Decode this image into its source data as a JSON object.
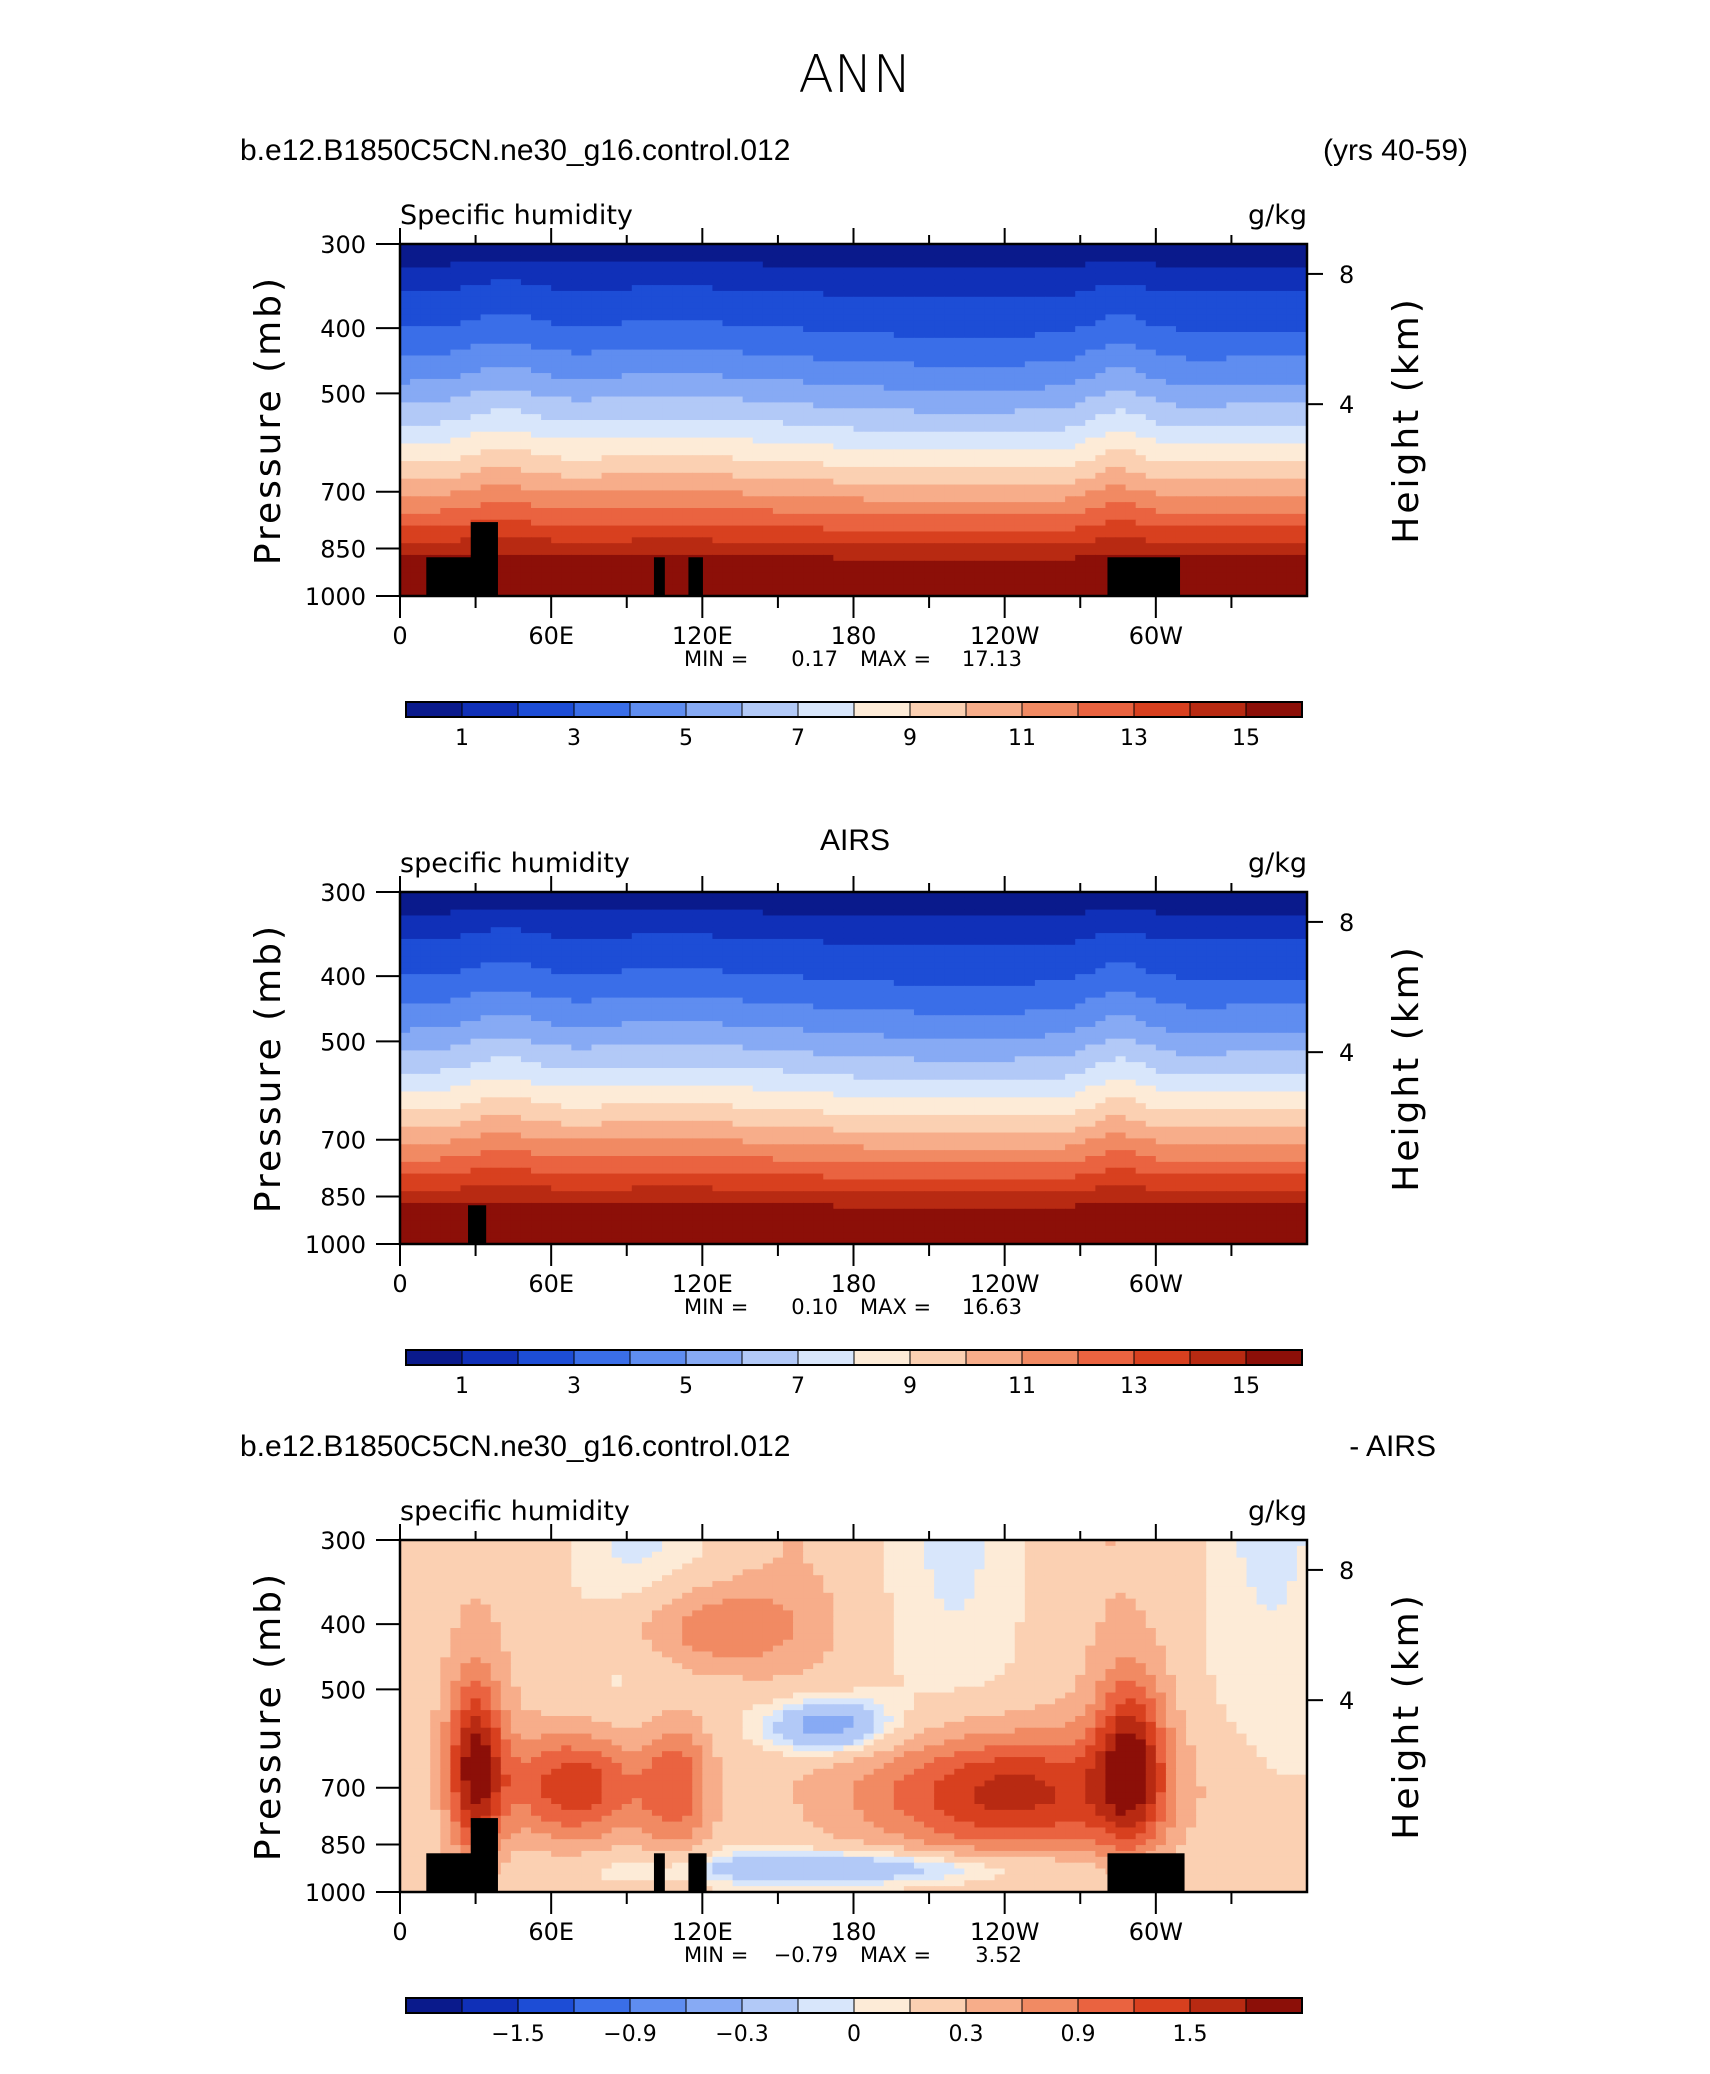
{
  "figure_title": "ANN",
  "colors": {
    "humidity_scale": [
      "#0a1a8c",
      "#1030b8",
      "#1d4dd6",
      "#3a6ee8",
      "#5f8df0",
      "#87aaf4",
      "#b2c9f7",
      "#d8e6fb",
      "#fdebd7",
      "#fbd0b2",
      "#f7ad8a",
      "#f18a63",
      "#ea6340",
      "#d8401f",
      "#b82a12",
      "#8c0f08"
    ],
    "difference_scale": [
      "#0a1a8c",
      "#1030b8",
      "#1d4dd6",
      "#3a6ee8",
      "#5f8df0",
      "#87aaf4",
      "#b2c9f7",
      "#d8e6fb",
      "#fdebd7",
      "#fbd0b2",
      "#f7ad8a",
      "#f18a63",
      "#ea6340",
      "#d8401f",
      "#b82a12",
      "#8c0f08"
    ],
    "topography": "#000000"
  },
  "chart_data": [
    {
      "type": "heatmap",
      "header_left": "b.e12.B1850C5CN.ne30_g16.control.012",
      "header_right": "(yrs 40-59)",
      "header_center": "",
      "left_string": "Specific humidity",
      "right_string": "g/kg",
      "ylabel": "Pressure (mb)",
      "ylabel_right": "Height (km)",
      "x_ticks": [
        "0",
        "60E",
        "120E",
        "180",
        "120W",
        "60W"
      ],
      "y_ticks": [
        "300",
        "400",
        "500",
        "700",
        "850",
        "1000"
      ],
      "y_ticks_right": [
        "8",
        "4"
      ],
      "stats": {
        "min_label": "MIN =",
        "min": "0.17",
        "max_label": "MAX =",
        "max": "17.13"
      },
      "colorbar_labels": [
        "1",
        "3",
        "5",
        "7",
        "9",
        "11",
        "13",
        "15"
      ],
      "contour_levels": [
        0.5,
        1,
        2,
        3,
        4,
        5,
        6,
        7,
        8,
        9,
        10,
        11,
        12,
        13,
        14,
        15
      ]
    },
    {
      "type": "heatmap",
      "header_left": "",
      "header_right": "",
      "header_center": "AIRS",
      "left_string": "specific humidity",
      "right_string": "g/kg",
      "ylabel": "Pressure (mb)",
      "ylabel_right": "Height (km)",
      "x_ticks": [
        "0",
        "60E",
        "120E",
        "180",
        "120W",
        "60W"
      ],
      "y_ticks": [
        "300",
        "400",
        "500",
        "700",
        "850",
        "1000"
      ],
      "y_ticks_right": [
        "8",
        "4"
      ],
      "stats": {
        "min_label": "MIN =",
        "min": "0.10",
        "max_label": "MAX =",
        "max": "16.63"
      },
      "colorbar_labels": [
        "1",
        "3",
        "5",
        "7",
        "9",
        "11",
        "13",
        "15"
      ],
      "contour_levels": [
        0.5,
        1,
        2,
        3,
        4,
        5,
        6,
        7,
        8,
        9,
        10,
        11,
        12,
        13,
        14,
        15
      ]
    },
    {
      "type": "heatmap",
      "header_left": "b.e12.B1850C5CN.ne30_g16.control.012",
      "header_right": "- AIRS",
      "header_center": "",
      "left_string": "specific humidity",
      "right_string": "g/kg",
      "ylabel": "Pressure (mb)",
      "ylabel_right": "Height (km)",
      "x_ticks": [
        "0",
        "60E",
        "120E",
        "180",
        "120W",
        "60W"
      ],
      "y_ticks": [
        "300",
        "400",
        "500",
        "700",
        "850",
        "1000"
      ],
      "y_ticks_right": [
        "8",
        "4"
      ],
      "stats": {
        "min_label": "MIN =",
        "min": "−0.79",
        "max_label": "MAX =",
        "max": "3.52"
      },
      "colorbar_labels": [
        "−1.5",
        "−0.9",
        "−0.3",
        "0",
        "0.3",
        "0.9",
        "1.5"
      ],
      "contour_levels": [
        -1.8,
        -1.5,
        -1.2,
        -0.9,
        -0.6,
        -0.3,
        0,
        0.15,
        0.3,
        0.6,
        0.9,
        1.2,
        1.5,
        1.8,
        2.1
      ]
    }
  ]
}
